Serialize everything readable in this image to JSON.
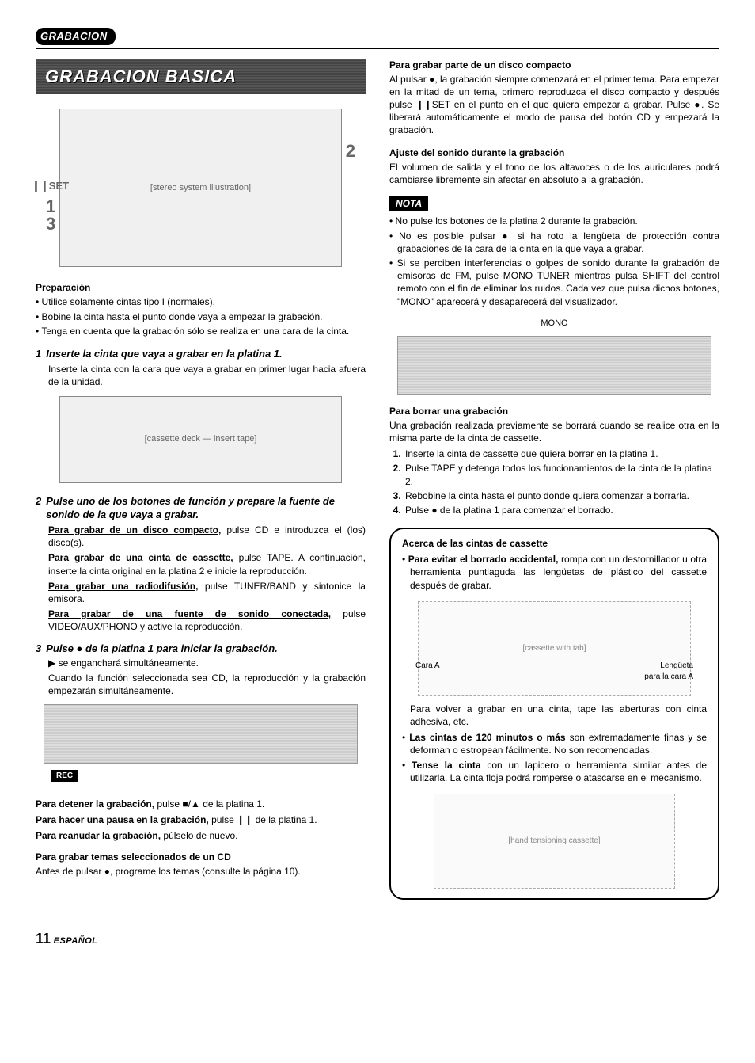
{
  "header_tag": "GRABACION",
  "title_banner": "GRABACION BASICA",
  "diagram1": {
    "callouts": {
      "set": "❙❙SET",
      "n1": "1",
      "n2": "2",
      "n3": "3"
    }
  },
  "prep": {
    "heading": "Preparación",
    "items": [
      "Utilice solamente cintas tipo I (normales).",
      "Bobine la cinta hasta el punto donde vaya a empezar la grabación.",
      "Tenga en cuenta que la grabación sólo se realiza en una cara de la cinta."
    ]
  },
  "steps": [
    {
      "num": "1",
      "title": "Inserte la cinta que vaya a grabar en la platina 1.",
      "body": "Inserte la cinta con la cara que vaya a grabar en primer lugar hacia afuera de la unidad."
    },
    {
      "num": "2",
      "title": "Pulse uno de los botones de función y prepare la fuente de sonido de la que vaya a grabar.",
      "lines": [
        {
          "u": "Para grabar de un disco compacto,",
          "rest": " pulse CD e introduzca el (los) disco(s)."
        },
        {
          "u": "Para grabar de una cinta de cassette,",
          "rest": " pulse TAPE. A continuación, inserte la cinta original en la platina 2 e inicie la reproducción."
        },
        {
          "u": "Para grabar una radiodifusión,",
          "rest": " pulse TUNER/BAND y sintonice la emisora."
        },
        {
          "u": "Para grabar de una fuente de sonido conectada,",
          "rest": " pulse VIDEO/AUX/PHONO y active la reproducción."
        }
      ]
    },
    {
      "num": "3",
      "title": "Pulse ● de la platina 1 para iniciar la grabación.",
      "body_lines": [
        "▶ se enganchará simultáneamente.",
        "Cuando la función seleccionada sea CD, la reproducción y la grabación empezarán simultáneamente."
      ]
    }
  ],
  "rec_tag": "REC",
  "stop_lines": [
    {
      "b": "Para detener la grabación,",
      "rest": " pulse ■/▲ de la platina 1."
    },
    {
      "b": "Para hacer una pausa en la grabación,",
      "rest": " pulse ❙❙ de la platina 1."
    },
    {
      "b": "Para reanudar la grabación,",
      "rest": " púlselo de nuevo."
    }
  ],
  "cd_sel": {
    "heading": "Para grabar temas seleccionados de un CD",
    "body": "Antes de pulsar ●, programe los temas (consulte la página 10)."
  },
  "right": {
    "part_cd": {
      "heading": "Para grabar parte de un disco compacto",
      "body": "Al pulsar ●, la grabación siempre comenzará en el primer tema. Para empezar en la mitad de un tema, primero reproduzca el disco compacto y después pulse ❙❙SET en el punto en el que quiera empezar a grabar. Pulse ●. Se liberará automáticamente el modo de pausa del botón CD y empezará la grabación."
    },
    "ajuste": {
      "heading": "Ajuste del sonido durante la grabación",
      "body": "El volumen de salida y el tono de los altavoces o de los auriculares podrá cambiarse libremente sin afectar en absoluto a la grabación."
    },
    "nota_label": "NOTA",
    "nota_items": [
      "No pulse los botones de la platina 2 durante la grabación.",
      "No es posible pulsar ● si ha roto la lengüeta de protección contra grabaciones de la cara de la cinta en la que vaya a grabar.",
      "Si se perciben interferencias o golpes de sonido durante la grabación de emisoras de FM, pulse MONO TUNER mientras pulsa SHIFT del control remoto con el fin de eliminar los ruidos. Cada vez que pulsa dichos botones, \"MONO\" aparecerá y desaparecerá del visualizador."
    ],
    "mono_label": "MONO",
    "borrar": {
      "heading": "Para borrar una grabación",
      "intro": "Una grabación realizada previamente se borrará cuando se realice otra en la misma parte de la cinta de cassette.",
      "items": [
        "Inserte la cinta de cassette que quiera borrar en la platina 1.",
        "Pulse TAPE y detenga todos los funcionamientos de la cinta de la platina 2.",
        "Rebobine la cinta hasta el punto donde quiera comenzar a borrarla.",
        "Pulse ● de la platina 1 para comenzar el borrado."
      ]
    },
    "box": {
      "heading": "Acerca de las cintas de cassette",
      "b1_b": "Para evitar el borrado accidental,",
      "b1_rest": " rompa con un destornillador u otra herramienta puntiaguda las lengüetas de plástico del cassette después de grabar.",
      "cassette_labels": {
        "left": "Cara A",
        "right": "Lengüeta",
        "right2": "para la cara A"
      },
      "mid": "Para volver a grabar en una cinta, tape las aberturas con cinta adhesiva, etc.",
      "b2_b": "Las cintas de 120 minutos o más",
      "b2_rest": " son extremadamente finas y se deforman o estropean fácilmente. No son recomendadas.",
      "b3_b": "Tense la cinta",
      "b3_rest": " con un lapicero o herramienta similar antes de utilizarla. La cinta floja podrá romperse o atascarse en el mecanismo."
    }
  },
  "footer": {
    "page": "11",
    "lang": "ESPAÑOL"
  }
}
